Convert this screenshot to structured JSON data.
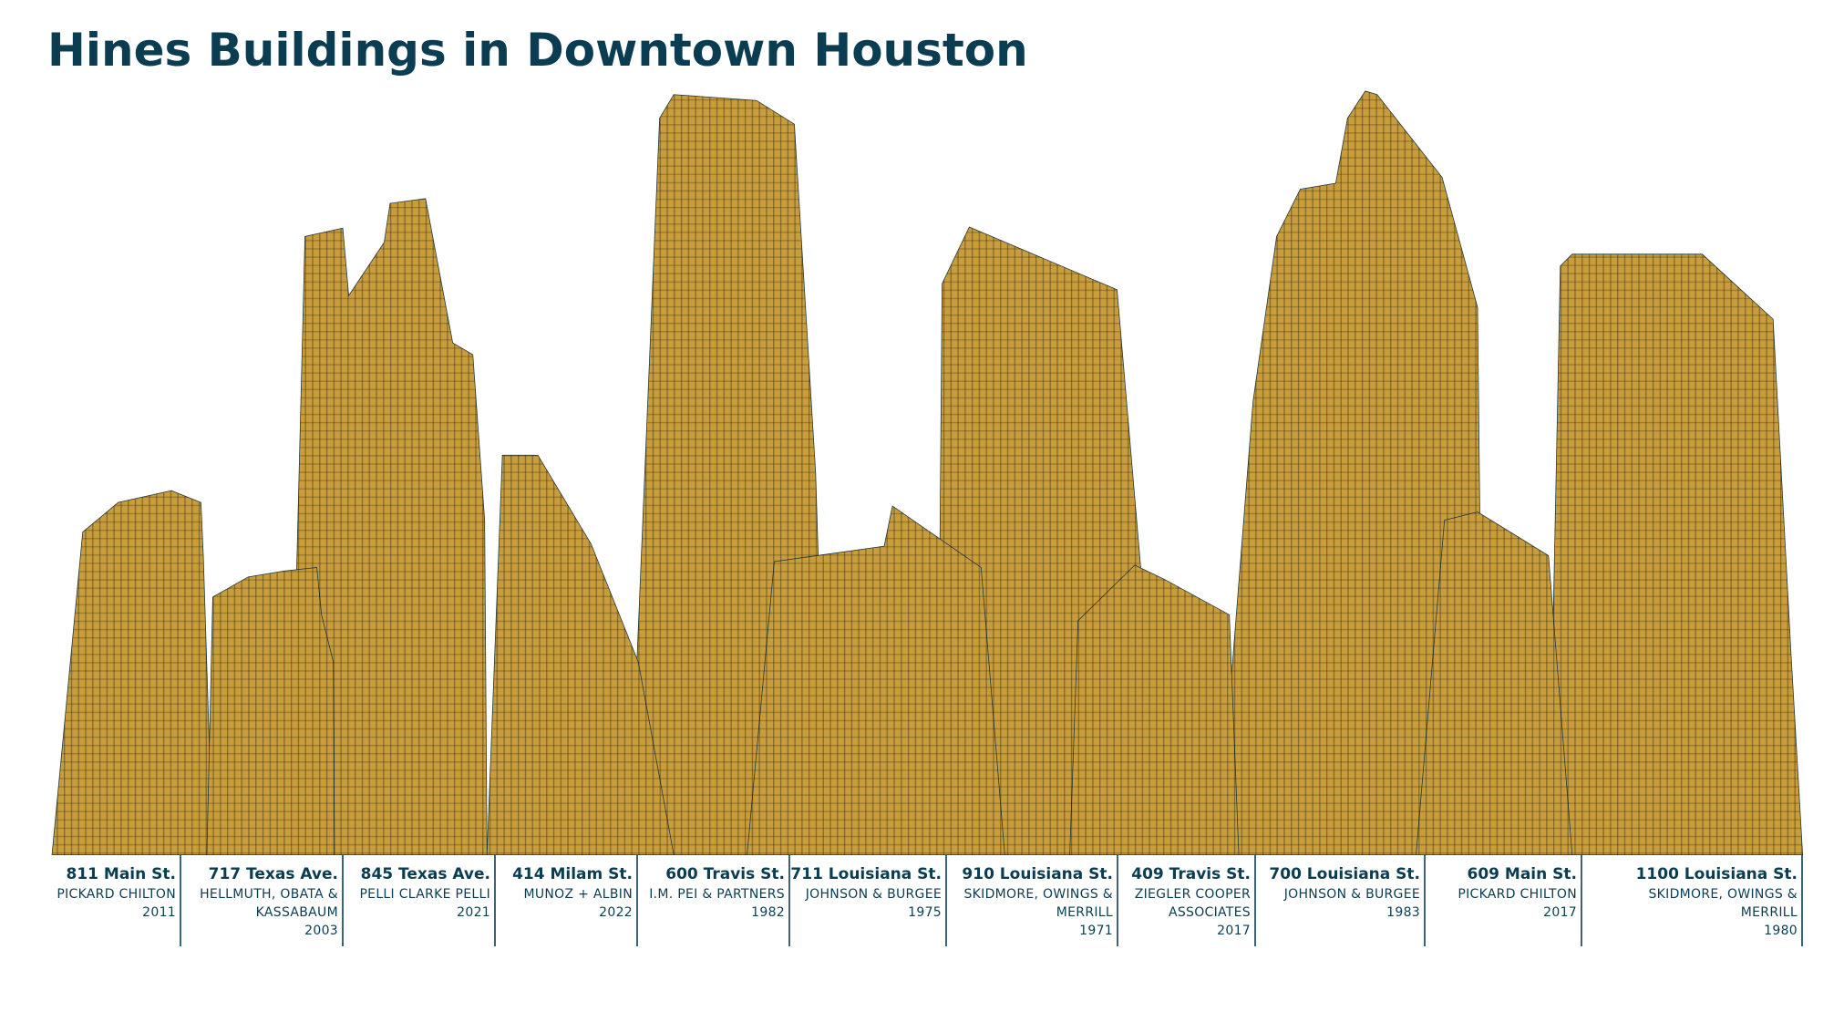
{
  "title": "Hines Buildings in Downtown Houston",
  "buildings": [
    {
      "address": "811 Main St.",
      "architect": [
        "PICKARD CHILTON"
      ],
      "year": 2011
    },
    {
      "address": "717 Texas Ave.",
      "architect": [
        "HELLMUTH, OBATA &",
        "KASSABAUM"
      ],
      "year": 2003
    },
    {
      "address": "845 Texas Ave.",
      "architect": [
        "PELLI CLARKE PELLI"
      ],
      "year": 2021
    },
    {
      "address": "414 Milam St.",
      "architect": [
        "MUNOZ + ALBIN"
      ],
      "year": 2022
    },
    {
      "address": "600 Travis St.",
      "architect": [
        "I.M. PEI & PARTNERS"
      ],
      "year": 1982
    },
    {
      "address": "711 Louisiana St.",
      "architect": [
        "JOHNSON & BURGEE"
      ],
      "year": 1975
    },
    {
      "address": "910 Louisiana St.",
      "architect": [
        "SKIDMORE, OWINGS &",
        "MERRILL"
      ],
      "year": 1971
    },
    {
      "address": "409 Travis St.",
      "architect": [
        "ZIEGLER COOPER",
        "ASSOCIATES"
      ],
      "year": 2017
    },
    {
      "address": "700 Louisiana St.",
      "architect": [
        "JOHNSON & BURGEE"
      ],
      "year": 1983
    },
    {
      "address": "609 Main St.",
      "architect": [
        "PICKARD CHILTON"
      ],
      "year": 2017
    },
    {
      "address": "1100 Louisiana St.",
      "architect": [
        "SKIDMORE, OWINGS &",
        "MERRILL"
      ],
      "year": 1980
    }
  ]
}
